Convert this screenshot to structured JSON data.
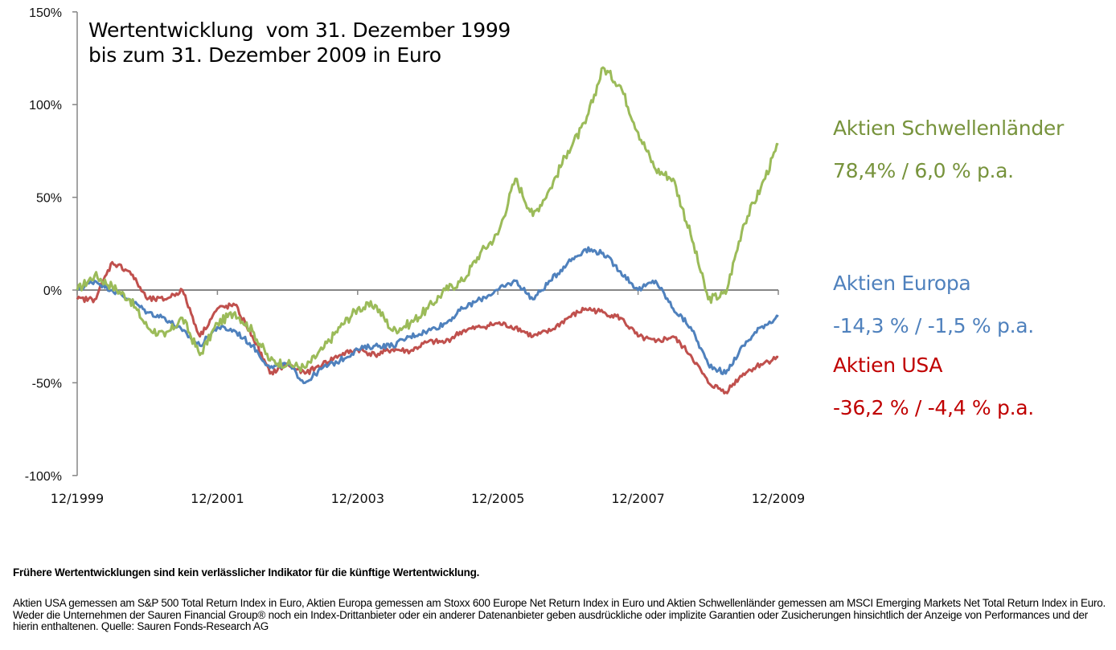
{
  "title": {
    "line1": "Wertentwicklung  vom 31. Dezember 1999",
    "line2": "bis zum 31. Dezember 2009 in Euro"
  },
  "legend": [
    {
      "name": "Aktien Schwellenländer",
      "performance": "78,4% / 6,0 % p.a.",
      "color": "#77933C"
    },
    {
      "name": "Aktien Europa",
      "performance": "-14,3 % / -1,5 % p.a.",
      "color": "#4F81BD"
    },
    {
      "name": "Aktien USA",
      "performance": "-36,2 % / -4,4 % p.a.",
      "color": "#C00000"
    }
  ],
  "footer": {
    "disclaimer": "Frühere Wertentwicklungen sind kein verlässlicher Indikator für die künftige Wertentwicklung.",
    "notes": "Aktien USA gemessen am S&P 500 Total Return Index in Euro, Aktien Europa gemessen am Stoxx 600 Europe Net Return Index in Euro und Aktien Schwellenländer gemessen am MSCI Emerging Markets Net Total Return Index in Euro. Weder die Unternehmen der Sauren Financial Group® noch ein Index-Drittanbieter oder ein anderer Datenanbieter geben ausdrückliche oder implizite Garantien oder Zusicherungen hinsichtlich der Anzeige von Performances und der hierin enthaltenen. Quelle: Sauren Fonds-Research AG"
  },
  "chart_data": {
    "type": "line",
    "title": "Wertentwicklung vom 31. Dezember 1999 bis zum 31. Dezember 2009 in Euro",
    "xlabel": "",
    "ylabel": "",
    "ylim": [
      -100,
      150
    ],
    "yticks": [
      -100,
      -50,
      0,
      50,
      100,
      150
    ],
    "ytick_labels": [
      "-100%",
      "-50%",
      "0%",
      "50%",
      "100%",
      "150%"
    ],
    "xticks": [
      "12/1999",
      "12/2001",
      "12/2003",
      "12/2005",
      "12/2007",
      "12/2009"
    ],
    "grid": false,
    "legend_position": "right (inline labels)",
    "x": [
      1999.92,
      2000.17,
      2000.42,
      2000.67,
      2000.92,
      2001.17,
      2001.42,
      2001.67,
      2001.92,
      2002.17,
      2002.42,
      2002.67,
      2002.92,
      2003.17,
      2003.42,
      2003.67,
      2003.92,
      2004.17,
      2004.42,
      2004.67,
      2004.92,
      2005.17,
      2005.42,
      2005.67,
      2005.92,
      2006.17,
      2006.42,
      2006.67,
      2006.92,
      2007.17,
      2007.42,
      2007.67,
      2007.92,
      2008.17,
      2008.42,
      2008.67,
      2008.92,
      2009.17,
      2009.42,
      2009.67,
      2009.92
    ],
    "series": [
      {
        "name": "Aktien Schwellenländer",
        "color": "#9BBB59",
        "values": [
          0,
          8,
          2,
          -5,
          -20,
          -25,
          -15,
          -35,
          -18,
          -12,
          -22,
          -38,
          -40,
          -42,
          -32,
          -20,
          -10,
          -8,
          -22,
          -18,
          -10,
          0,
          5,
          20,
          30,
          60,
          40,
          55,
          75,
          90,
          120,
          110,
          85,
          65,
          60,
          30,
          -5,
          -2,
          35,
          55,
          78.4
        ]
      },
      {
        "name": "Aktien Europa",
        "color": "#4F81BD",
        "values": [
          0,
          5,
          0,
          -5,
          -12,
          -15,
          -22,
          -30,
          -20,
          -22,
          -30,
          -42,
          -40,
          -50,
          -42,
          -38,
          -32,
          -30,
          -30,
          -25,
          -22,
          -18,
          -10,
          -5,
          0,
          5,
          -5,
          5,
          15,
          22,
          20,
          10,
          0,
          5,
          -10,
          -20,
          -40,
          -45,
          -30,
          -20,
          -14.3
        ]
      },
      {
        "name": "Aktien USA",
        "color": "#C0504D",
        "values": [
          -5,
          -5,
          15,
          10,
          -5,
          -5,
          0,
          -25,
          -10,
          -8,
          -25,
          -45,
          -40,
          -45,
          -40,
          -35,
          -32,
          -35,
          -32,
          -33,
          -28,
          -28,
          -22,
          -20,
          -18,
          -20,
          -25,
          -22,
          -15,
          -10,
          -12,
          -15,
          -25,
          -28,
          -25,
          -35,
          -50,
          -55,
          -45,
          -40,
          -36.2
        ]
      }
    ]
  }
}
